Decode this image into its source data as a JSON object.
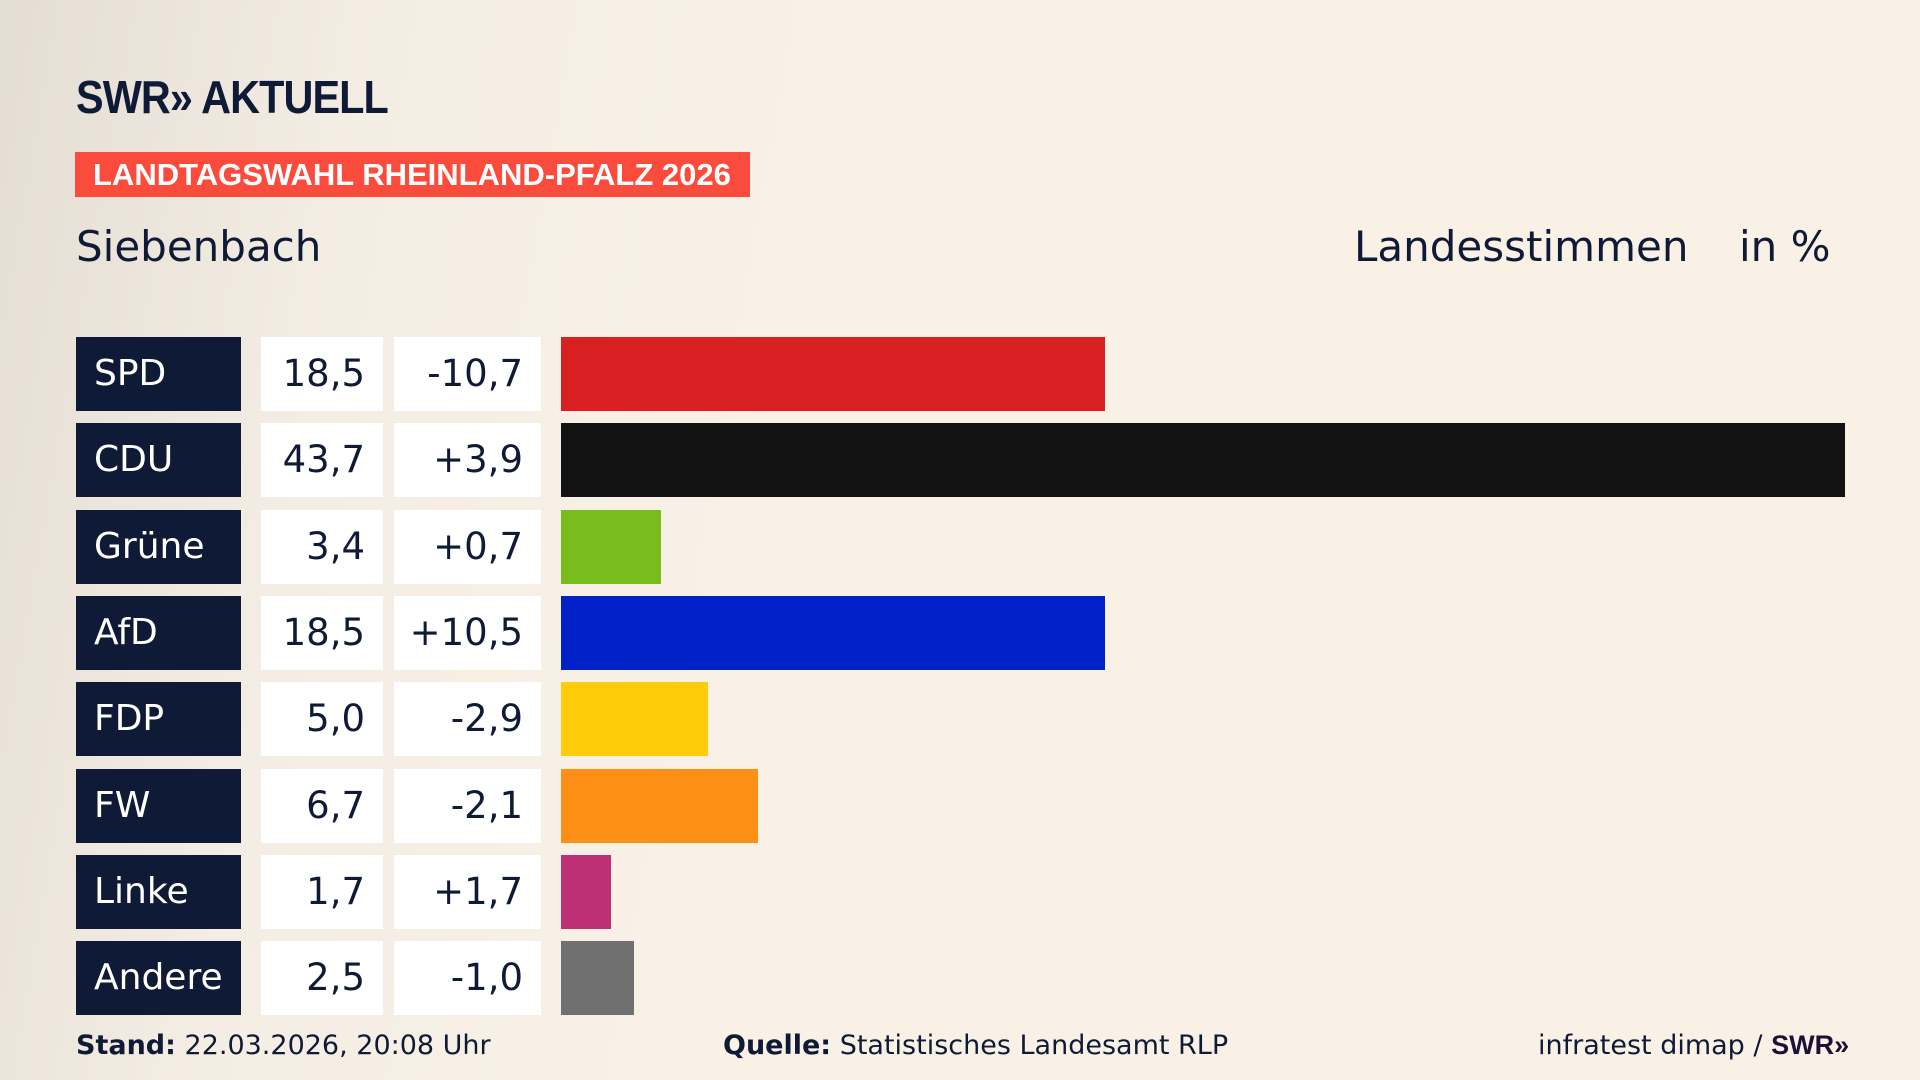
{
  "header": {
    "logo": "SWR» AKTUELL",
    "banner": "LANDTAGSWAHL RHEINLAND-PFALZ 2026",
    "place": "Siebenbach",
    "measure": "Landesstimmen",
    "unit": "in %"
  },
  "chart_data": {
    "type": "bar",
    "orientation": "horizontal",
    "categories": [
      "SPD",
      "CDU",
      "Grüne",
      "AfD",
      "FDP",
      "FW",
      "Linke",
      "Andere"
    ],
    "values": [
      18.5,
      43.7,
      3.4,
      18.5,
      5.0,
      6.7,
      1.7,
      2.5
    ],
    "value_labels": [
      "18,5",
      "43,7",
      "3,4",
      "18,5",
      "5,0",
      "6,7",
      "1,7",
      "2,5"
    ],
    "change_labels": [
      "-10,7",
      "+3,9",
      "+0,7",
      "+10,5",
      "-2,9",
      "-2,1",
      "+1,7",
      "-1,0"
    ],
    "changes": [
      -10.7,
      3.9,
      0.7,
      10.5,
      -2.9,
      -2.1,
      1.7,
      -1.0
    ],
    "colors": [
      "#d81f21",
      "#121212",
      "#79bd1c",
      "#0020c8",
      "#fecc0a",
      "#fd8f17",
      "#bd3075",
      "#707070"
    ],
    "xlim": [
      0,
      43.7
    ]
  },
  "footer": {
    "stand_label": "Stand:",
    "stand": "22.03.2026, 20:08 Uhr",
    "source_label": "Quelle:",
    "source": "Statistisches Landesamt RLP",
    "credit": "infratest dimap / ",
    "credit_logo": "SWR»"
  }
}
